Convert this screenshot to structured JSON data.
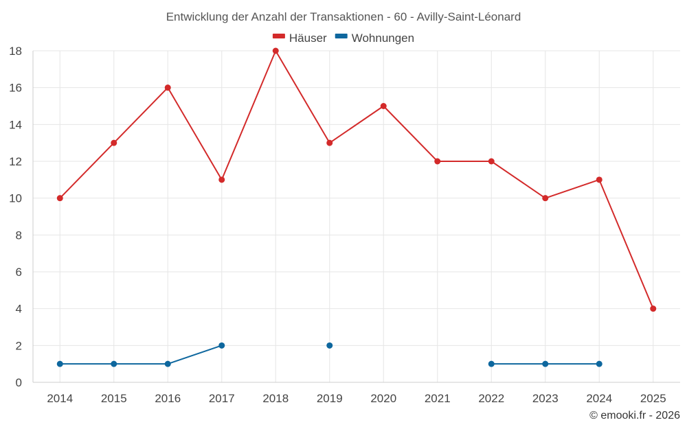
{
  "chart_data": {
    "type": "line",
    "title": "Entwicklung der Anzahl der Transaktionen - 60 - Avilly-Saint-Léonard",
    "xlabel": "",
    "ylabel": "",
    "categories": [
      "2014",
      "2015",
      "2016",
      "2017",
      "2018",
      "2019",
      "2020",
      "2021",
      "2022",
      "2023",
      "2024",
      "2025"
    ],
    "ylim": [
      0,
      18
    ],
    "yticks": [
      0,
      2,
      4,
      6,
      8,
      10,
      12,
      14,
      16,
      18
    ],
    "grid": true,
    "legend": "top-center",
    "series": [
      {
        "name": "Häuser",
        "color": "#d32a2a",
        "values": [
          10,
          13,
          16,
          11,
          18,
          13,
          15,
          12,
          12,
          10,
          11,
          4
        ]
      },
      {
        "name": "Wohnungen",
        "color": "#0e679e",
        "values": [
          1,
          1,
          1,
          2,
          null,
          2,
          null,
          null,
          1,
          1,
          1,
          null
        ]
      }
    ]
  },
  "credit": "© emooki.fr - 2026"
}
